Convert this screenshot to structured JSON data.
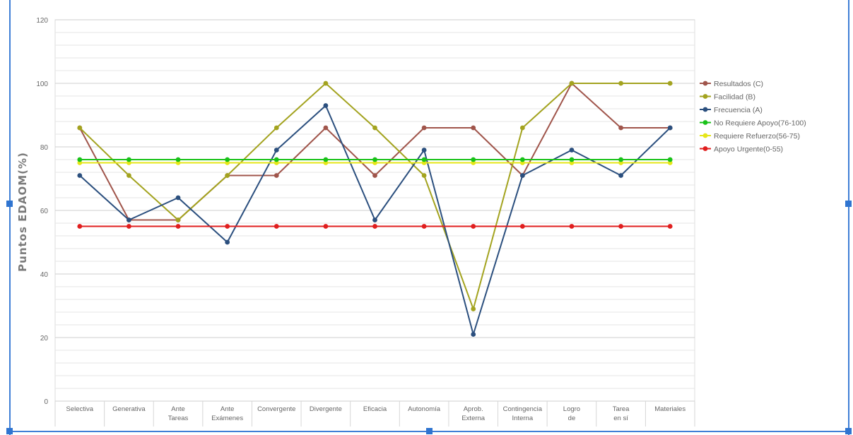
{
  "chart_data": {
    "type": "line",
    "title": "",
    "xlabel": "",
    "ylabel": "Puntos EDAOM(%)",
    "ylim": [
      0,
      120
    ],
    "yticks": [
      0,
      20,
      40,
      60,
      80,
      100,
      120
    ],
    "grid": true,
    "legend_position": "right",
    "categories": [
      [
        "Selectiva"
      ],
      [
        "Generativa"
      ],
      [
        "Ante",
        "Tareas"
      ],
      [
        "Ante",
        "Exámenes"
      ],
      [
        "Convergente"
      ],
      [
        "Divergente"
      ],
      [
        "Eficacia"
      ],
      [
        "Autonomía"
      ],
      [
        "Aprob.",
        "Externa"
      ],
      [
        "Contingencia",
        "Interna"
      ],
      [
        "Logro",
        "de"
      ],
      [
        "Tarea",
        "en sí"
      ],
      [
        "Materiales"
      ]
    ],
    "series": [
      {
        "name": "Resultados (C)",
        "color": "#a0554b",
        "values": [
          86,
          57,
          57,
          71,
          71,
          86,
          71,
          86,
          86,
          71,
          100,
          86,
          86
        ]
      },
      {
        "name": "Facilidad (B)",
        "color": "#a3a31f",
        "values": [
          86,
          71,
          57,
          71,
          86,
          100,
          86,
          71,
          29,
          86,
          100,
          100,
          100
        ]
      },
      {
        "name": "Frecuencia (A)",
        "color": "#2b4f7e",
        "values": [
          71,
          57,
          64,
          50,
          79,
          93,
          57,
          79,
          21,
          71,
          79,
          71,
          86
        ]
      },
      {
        "name": "No Requiere Apoyo(76-100)",
        "color": "#19c219",
        "values": [
          76,
          76,
          76,
          76,
          76,
          76,
          76,
          76,
          76,
          76,
          76,
          76,
          76
        ]
      },
      {
        "name": "Requiere Refuerzo(56-75)",
        "color": "#e6e619",
        "values": [
          75,
          75,
          75,
          75,
          75,
          75,
          75,
          75,
          75,
          75,
          75,
          75,
          75
        ]
      },
      {
        "name": "Apoyo Urgente(0-55)",
        "color": "#e01e1e",
        "values": [
          55,
          55,
          55,
          55,
          55,
          55,
          55,
          55,
          55,
          55,
          55,
          55,
          55
        ]
      }
    ]
  }
}
